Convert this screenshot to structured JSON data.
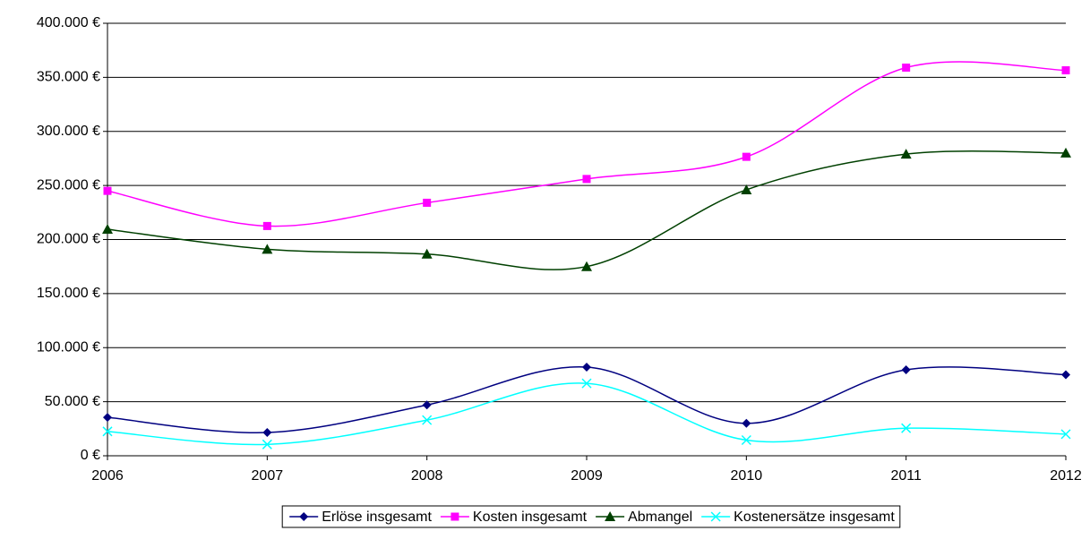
{
  "chart_data": {
    "type": "line",
    "categories": [
      "2006",
      "2007",
      "2008",
      "2009",
      "2010",
      "2011",
      "2012"
    ],
    "series": [
      {
        "name": "Erlöse insgesamt",
        "color": "#000080",
        "marker": "diamond",
        "values": [
          35500,
          21500,
          47000,
          82000,
          30000,
          79500,
          75000
        ]
      },
      {
        "name": "Kosten insgesamt",
        "color": "#ff00ff",
        "marker": "square",
        "values": [
          245000,
          212500,
          234000,
          256000,
          276500,
          359000,
          356500
        ]
      },
      {
        "name": "Abmangel",
        "color": "#004000",
        "marker": "triangle",
        "values": [
          209500,
          191000,
          186500,
          175000,
          246000,
          279000,
          280000
        ]
      },
      {
        "name": "Kostenersätze insgesamt",
        "color": "#00ffff",
        "marker": "x",
        "values": [
          22500,
          10500,
          33000,
          67000,
          14500,
          25500,
          20000
        ]
      }
    ],
    "ylim": [
      0,
      400000
    ],
    "yticks": [
      {
        "value": 0,
        "label": "0 €"
      },
      {
        "value": 50000,
        "label": "50.000 €"
      },
      {
        "value": 100000,
        "label": "100.000 €"
      },
      {
        "value": 150000,
        "label": "150.000 €"
      },
      {
        "value": 200000,
        "label": "200.000 €"
      },
      {
        "value": 250000,
        "label": "250.000 €"
      },
      {
        "value": 300000,
        "label": "300.000 €"
      },
      {
        "value": 350000,
        "label": "350.000 €"
      },
      {
        "value": 400000,
        "label": "400.000 €"
      }
    ],
    "grid": true,
    "smooth": true,
    "legend": "bottom"
  }
}
